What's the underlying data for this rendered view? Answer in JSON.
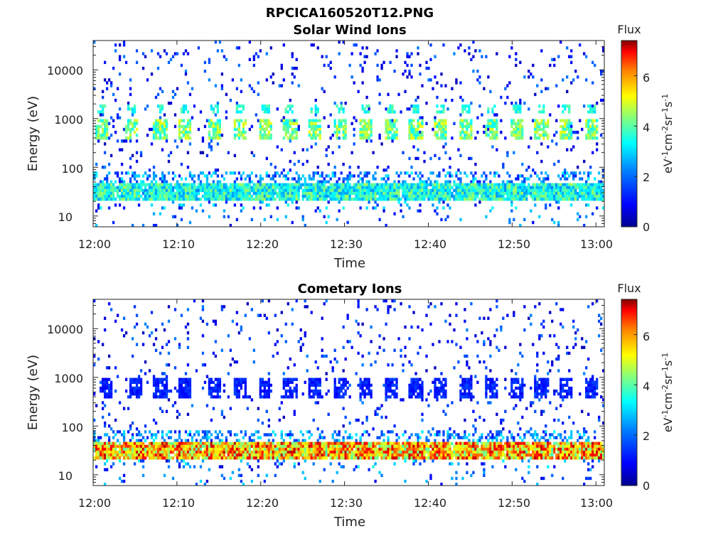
{
  "figure_title": "RPCICA160520T12.PNG",
  "colorbar": {
    "title": "Flux",
    "label_prefix": "eV",
    "label_parts": [
      "-1",
      "cm",
      "-2",
      "sr",
      "-1",
      "s",
      "-1"
    ],
    "ticks": [
      "0",
      "2",
      "4",
      "6"
    ],
    "range": [
      0,
      7.4
    ]
  },
  "colors": {
    "colormap": [
      "#00008f",
      "#0000ff",
      "#0080ff",
      "#00ffff",
      "#80ff80",
      "#ffff00",
      "#ff8000",
      "#ff0000",
      "#800000"
    ]
  },
  "chart_data": [
    {
      "type": "heatmap",
      "title": "Solar Wind Ions",
      "xlabel": "Time",
      "ylabel": "Energy (eV)",
      "x_ticks": [
        "12:00",
        "12:10",
        "12:20",
        "12:30",
        "12:40",
        "12:50",
        "13:00"
      ],
      "x_range_minutes": [
        0,
        61
      ],
      "y_ticks": [
        "10",
        "100",
        "1000",
        "10000"
      ],
      "y_scale": "log",
      "y_range": [
        6,
        40000
      ],
      "colorbar_title": "Flux",
      "colorbar_ticks": [
        "0",
        "2",
        "4",
        "6"
      ],
      "features": {
        "ion_band_eV": [
          20,
          50
        ],
        "ion_band_flux": 3.3,
        "pulse_band_eV": [
          350,
          1000
        ],
        "pulse_upper_eV": [
          1200,
          1900
        ],
        "pulse_flux": 3.8,
        "pulse_times_min": [
          1,
          4.5,
          8,
          11,
          14.5,
          17.5,
          20.5,
          23.5,
          26.5,
          29.5,
          32.5,
          35.5,
          38.5,
          41.5,
          44.5,
          47.5,
          50.5,
          53.5,
          56.5,
          59.5
        ]
      }
    },
    {
      "type": "heatmap",
      "title": "Cometary Ions",
      "xlabel": "Time",
      "ylabel": "Energy (eV)",
      "x_ticks": [
        "12:00",
        "12:10",
        "12:20",
        "12:30",
        "12:40",
        "12:50",
        "13:00"
      ],
      "x_range_minutes": [
        0,
        61
      ],
      "y_ticks": [
        "10",
        "100",
        "1000",
        "10000"
      ],
      "y_scale": "log",
      "y_range": [
        6,
        40000
      ],
      "colorbar_title": "Flux",
      "colorbar_ticks": [
        "0",
        "2",
        "4",
        "6"
      ],
      "features": {
        "ion_band_eV": [
          20,
          45
        ],
        "ion_band_flux": 5.8,
        "pulse_band_eV": [
          350,
          1000
        ],
        "pulse_flux": 1.2,
        "pulse_times_min": [
          1.5,
          5,
          8,
          11,
          14.5,
          17.5,
          20.5,
          23.5,
          26.5,
          29.5,
          32.5,
          35.5,
          38.5,
          41.5,
          44.5,
          47.5,
          50.5,
          53.5,
          56.5,
          59.5
        ]
      }
    }
  ]
}
